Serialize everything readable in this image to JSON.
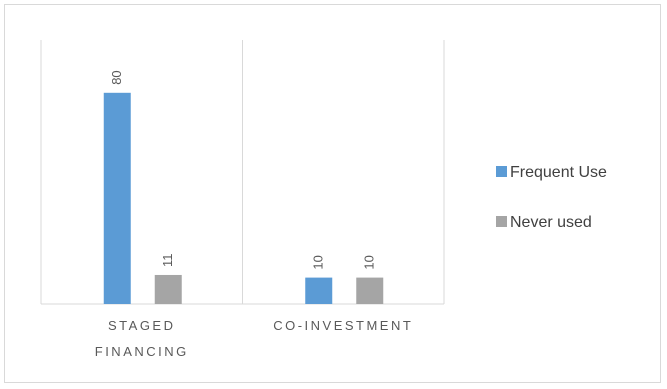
{
  "chart_data": {
    "type": "bar",
    "categories": [
      "STAGED FINANCING",
      "CO-INVESTMENT"
    ],
    "category_lines": [
      [
        "STAGED",
        "FINANCING"
      ],
      [
        "CO-INVESTMENT"
      ]
    ],
    "series": [
      {
        "name": "Frequent Use",
        "values": [
          80,
          10
        ],
        "color": "#5b9bd5"
      },
      {
        "name": "Never used",
        "values": [
          11,
          10
        ],
        "color": "#a5a5a5"
      }
    ],
    "ylim": [
      0,
      100
    ],
    "data_labels": true,
    "data_label_rotation": "vertical",
    "legend_position": "right",
    "grid": false,
    "title": "",
    "xlabel": "",
    "ylabel": ""
  }
}
